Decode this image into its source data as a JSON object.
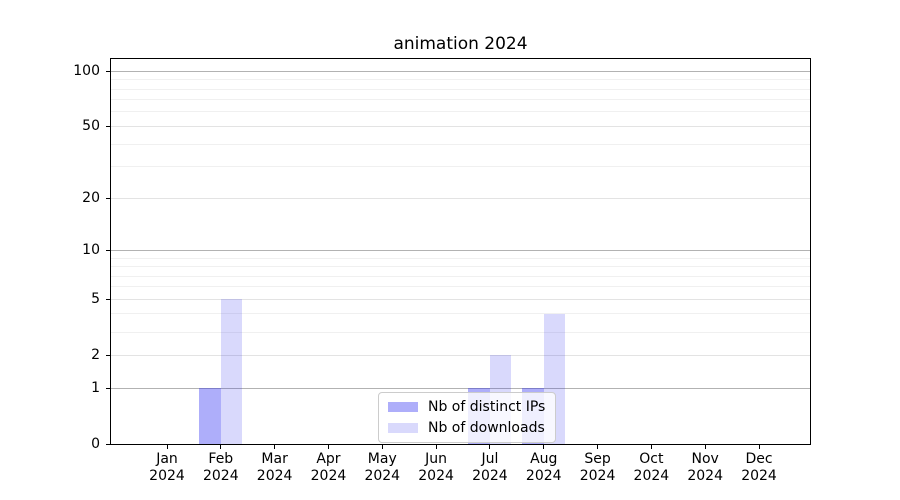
{
  "chart_data": {
    "type": "bar",
    "title": "animation 2024",
    "categories": [
      "Jan\n2024",
      "Feb\n2024",
      "Mar\n2024",
      "Apr\n2024",
      "May\n2024",
      "Jun\n2024",
      "Jul\n2024",
      "Aug\n2024",
      "Sep\n2024",
      "Oct\n2024",
      "Nov\n2024",
      "Dec\n2024"
    ],
    "series": [
      {
        "name": "Nb of distinct IPs",
        "color": "rgba(30,30,240,0.36)",
        "values": [
          0,
          1,
          0,
          0,
          0,
          0,
          1,
          1,
          0,
          0,
          0,
          0
        ]
      },
      {
        "name": "Nb of downloads",
        "color": "rgba(30,30,240,0.17)",
        "values": [
          0,
          5,
          0,
          0,
          0,
          0,
          2,
          4,
          0,
          0,
          0,
          0
        ]
      }
    ],
    "xlabel": "",
    "ylabel": "",
    "y_axis": {
      "scale": "log10(1+v)",
      "tick_values": [
        0,
        1,
        2,
        5,
        10,
        20,
        50,
        100
      ],
      "decade_gridline_values": [
        1,
        10,
        100
      ],
      "mid_gridline_values": [
        2,
        5,
        20,
        50
      ],
      "minor_gridline_values": [
        3,
        4,
        6,
        7,
        8,
        9,
        30,
        40,
        60,
        70,
        80,
        90
      ],
      "ylim": [
        0,
        115
      ]
    },
    "grid": true,
    "legend_position": "lower center",
    "colors": {
      "grid_decade": "#b2b2b2",
      "grid_mid": "#e3e3e3",
      "grid_minor": "#f0f0f0",
      "axis": "#000000",
      "legend_border": "#cccccc"
    }
  }
}
